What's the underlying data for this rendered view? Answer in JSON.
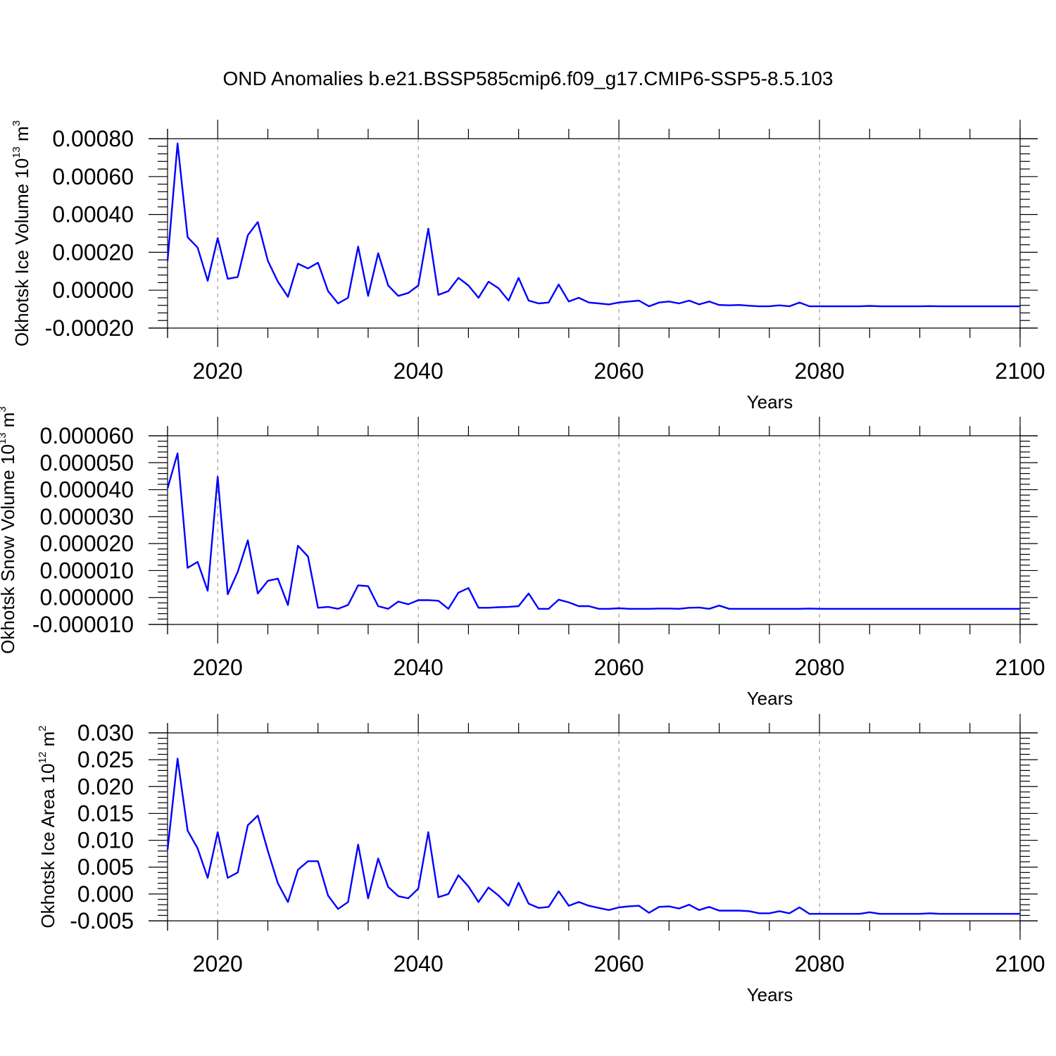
{
  "figure_title": "OND Anomalies b.e21.BSSP585cmip6.f09_g17.CMIP6-SSP5-8.5.103",
  "colors": {
    "line": "#0000ff",
    "axes": "#000000",
    "grid": "#9a9a9a",
    "background": "#ffffff"
  },
  "chart_data": [
    {
      "type": "line",
      "title": "OND Anomalies b.e21.BSSP585cmip6.f09_g17.CMIP6-SSP5-8.5.103",
      "xlabel": "Years",
      "ylabel": {
        "text": "Okhotsk Ice Volume 10",
        "exponent": "13",
        "unit": " m",
        "unit_exponent": "3"
      },
      "xlim": [
        2015,
        2100
      ],
      "ylim": [
        -0.0002,
        0.0008
      ],
      "xticks": [
        "2020",
        "2040",
        "2060",
        "2080",
        "2100"
      ],
      "yticks": [
        "0.00080",
        "0.00060",
        "0.00040",
        "0.00020",
        "0.00000",
        "-0.00020"
      ],
      "grid": "vertical dashed at major x ticks",
      "x": [
        2015,
        2016,
        2017,
        2018,
        2019,
        2020,
        2021,
        2022,
        2023,
        2024,
        2025,
        2026,
        2027,
        2028,
        2029,
        2030,
        2031,
        2032,
        2033,
        2034,
        2035,
        2036,
        2037,
        2038,
        2039,
        2040,
        2041,
        2042,
        2043,
        2044,
        2045,
        2046,
        2047,
        2048,
        2049,
        2050,
        2051,
        2052,
        2053,
        2054,
        2055,
        2056,
        2057,
        2058,
        2059,
        2060,
        2061,
        2062,
        2063,
        2064,
        2065,
        2066,
        2067,
        2068,
        2069,
        2070,
        2071,
        2072,
        2073,
        2074,
        2075,
        2076,
        2077,
        2078,
        2079,
        2080,
        2081,
        2082,
        2083,
        2084,
        2085,
        2086,
        2087,
        2088,
        2089,
        2090,
        2091,
        2092,
        2093,
        2094,
        2095,
        2096,
        2097,
        2098,
        2099,
        2100
      ],
      "values": [
        0.000155,
        0.000775,
        0.00028,
        0.000225,
        5e-05,
        0.000275,
        6e-05,
        7e-05,
        0.00029,
        0.00036,
        0.000155,
        4.5e-05,
        -3.5e-05,
        0.00014,
        0.000115,
        0.000145,
        -5e-06,
        -7e-05,
        -4e-05,
        0.00023,
        -3e-05,
        0.000195,
        2.5e-05,
        -3e-05,
        -1.5e-05,
        2.5e-05,
        0.000325,
        -2.5e-05,
        -5e-06,
        6.5e-05,
        2.5e-05,
        -4e-05,
        4.5e-05,
        1e-05,
        -5.5e-05,
        6.5e-05,
        -5.5e-05,
        -7e-05,
        -6.5e-05,
        3e-05,
        -6e-05,
        -4e-05,
        -6.5e-05,
        -7e-05,
        -7.5e-05,
        -6.5e-05,
        -6e-05,
        -5.5e-05,
        -8.5e-05,
        -6.5e-05,
        -6e-05,
        -7e-05,
        -5.5e-05,
        -7.5e-05,
        -6e-05,
        -7.8e-05,
        -8e-05,
        -7.8e-05,
        -8.2e-05,
        -8.5e-05,
        -8.5e-05,
        -8e-05,
        -8.5e-05,
        -6.5e-05,
        -8.5e-05,
        -8.5e-05,
        -8.5e-05,
        -8.5e-05,
        -8.5e-05,
        -8.5e-05,
        -8.3e-05,
        -8.5e-05,
        -8.5e-05,
        -8.5e-05,
        -8.5e-05,
        -8.5e-05,
        -8.4e-05,
        -8.5e-05,
        -8.5e-05,
        -8.5e-05,
        -8.5e-05,
        -8.5e-05,
        -8.5e-05,
        -8.5e-05,
        -8.5e-05,
        -8.5e-05
      ]
    },
    {
      "type": "line",
      "xlabel": "Years",
      "ylabel": {
        "text": "Okhotsk Snow Volume 10",
        "exponent": "13",
        "unit": " m",
        "unit_exponent": "3"
      },
      "xlim": [
        2015,
        2100
      ],
      "ylim": [
        -1e-05,
        6e-05
      ],
      "xticks": [
        "2020",
        "2040",
        "2060",
        "2080",
        "2100"
      ],
      "yticks": [
        "0.000060",
        "0.000050",
        "0.000040",
        "0.000030",
        "0.000020",
        "0.000010",
        "0.000000",
        "-0.000010"
      ],
      "grid": "vertical dashed at major x ticks",
      "x": [
        2015,
        2016,
        2017,
        2018,
        2019,
        2020,
        2021,
        2022,
        2023,
        2024,
        2025,
        2026,
        2027,
        2028,
        2029,
        2030,
        2031,
        2032,
        2033,
        2034,
        2035,
        2036,
        2037,
        2038,
        2039,
        2040,
        2041,
        2042,
        2043,
        2044,
        2045,
        2046,
        2047,
        2048,
        2049,
        2050,
        2051,
        2052,
        2053,
        2054,
        2055,
        2056,
        2057,
        2058,
        2059,
        2060,
        2061,
        2062,
        2063,
        2064,
        2065,
        2066,
        2067,
        2068,
        2069,
        2070,
        2071,
        2072,
        2073,
        2074,
        2075,
        2076,
        2077,
        2078,
        2079,
        2080,
        2081,
        2082,
        2083,
        2084,
        2085,
        2086,
        2087,
        2088,
        2089,
        2090,
        2091,
        2092,
        2093,
        2094,
        2095,
        2096,
        2097,
        2098,
        2099,
        2100
      ],
      "values": [
        4.05e-05,
        5.35e-05,
        1.1e-05,
        1.32e-05,
        2.5e-06,
        4.48e-05,
        1.2e-06,
        9.5e-06,
        2.12e-05,
        1.5e-06,
        6.2e-06,
        7e-06,
        -2.8e-06,
        1.92e-05,
        1.52e-05,
        -3.8e-06,
        -3.5e-06,
        -4.2e-06,
        -2.8e-06,
        4.5e-06,
        4.2e-06,
        -3.2e-06,
        -4.2e-06,
        -1.5e-06,
        -2.5e-06,
        -1e-06,
        -1e-06,
        -1.2e-06,
        -4.2e-06,
        1.8e-06,
        3.5e-06,
        -3.8e-06,
        -3.8e-06,
        -3.6e-06,
        -3.5e-06,
        -3.2e-06,
        1.5e-06,
        -4.2e-06,
        -4.2e-06,
        -8e-07,
        -1.8e-06,
        -3.2e-06,
        -3.2e-06,
        -4.2e-06,
        -4.2e-06,
        -4e-06,
        -4.2e-06,
        -4.2e-06,
        -4.2e-06,
        -4.1e-06,
        -4.1e-06,
        -4.2e-06,
        -3.8e-06,
        -3.7e-06,
        -4.2e-06,
        -3e-06,
        -4.2e-06,
        -4.2e-06,
        -4.2e-06,
        -4.2e-06,
        -4.2e-06,
        -4.2e-06,
        -4.2e-06,
        -4.2e-06,
        -4.1e-06,
        -4.2e-06,
        -4.2e-06,
        -4.2e-06,
        -4.2e-06,
        -4.2e-06,
        -4.2e-06,
        -4.2e-06,
        -4.2e-06,
        -4.2e-06,
        -4.2e-06,
        -4.2e-06,
        -4.2e-06,
        -4.2e-06,
        -4.2e-06,
        -4.2e-06,
        -4.2e-06,
        -4.2e-06,
        -4.2e-06,
        -4.2e-06,
        -4.2e-06,
        -4.2e-06
      ]
    },
    {
      "type": "line",
      "xlabel": "Years",
      "ylabel": {
        "text": "Okhotsk Ice Area 10",
        "exponent": "12",
        "unit": " m",
        "unit_exponent": "2"
      },
      "xlim": [
        2015,
        2100
      ],
      "ylim": [
        -0.005,
        0.03
      ],
      "xticks": [
        "2020",
        "2040",
        "2060",
        "2080",
        "2100"
      ],
      "yticks": [
        "0.030",
        "0.025",
        "0.020",
        "0.015",
        "0.010",
        "0.005",
        "0.000",
        "-0.005"
      ],
      "grid": "vertical dashed at major x ticks",
      "x": [
        2015,
        2016,
        2017,
        2018,
        2019,
        2020,
        2021,
        2022,
        2023,
        2024,
        2025,
        2026,
        2027,
        2028,
        2029,
        2030,
        2031,
        2032,
        2033,
        2034,
        2035,
        2036,
        2037,
        2038,
        2039,
        2040,
        2041,
        2042,
        2043,
        2044,
        2045,
        2046,
        2047,
        2048,
        2049,
        2050,
        2051,
        2052,
        2053,
        2054,
        2055,
        2056,
        2057,
        2058,
        2059,
        2060,
        2061,
        2062,
        2063,
        2064,
        2065,
        2066,
        2067,
        2068,
        2069,
        2070,
        2071,
        2072,
        2073,
        2074,
        2075,
        2076,
        2077,
        2078,
        2079,
        2080,
        2081,
        2082,
        2083,
        2084,
        2085,
        2086,
        2087,
        2088,
        2089,
        2090,
        2091,
        2092,
        2093,
        2094,
        2095,
        2096,
        2097,
        2098,
        2099,
        2100
      ],
      "values": [
        0.0082,
        0.0252,
        0.0118,
        0.0085,
        0.003,
        0.0115,
        0.003,
        0.004,
        0.0128,
        0.0146,
        0.008,
        0.002,
        -0.0015,
        0.0045,
        0.0061,
        0.0061,
        -0.0003,
        -0.0028,
        -0.0015,
        0.0092,
        -0.0008,
        0.0066,
        0.0013,
        -0.0004,
        -0.0008,
        0.001,
        0.0115,
        -0.0006,
        0.0,
        0.0035,
        0.0014,
        -0.0015,
        0.0012,
        -0.0003,
        -0.0022,
        0.0021,
        -0.0018,
        -0.0026,
        -0.0024,
        0.0005,
        -0.0022,
        -0.0015,
        -0.0022,
        -0.0026,
        -0.003,
        -0.0025,
        -0.0023,
        -0.0022,
        -0.0035,
        -0.0024,
        -0.0023,
        -0.0027,
        -0.002,
        -0.003,
        -0.0024,
        -0.0031,
        -0.0031,
        -0.0031,
        -0.0032,
        -0.0036,
        -0.0036,
        -0.0032,
        -0.0036,
        -0.0025,
        -0.0037,
        -0.0037,
        -0.0037,
        -0.0037,
        -0.0037,
        -0.0037,
        -0.0034,
        -0.0037,
        -0.0037,
        -0.0037,
        -0.0037,
        -0.0037,
        -0.0036,
        -0.0037,
        -0.0037,
        -0.0037,
        -0.0037,
        -0.0037,
        -0.0037,
        -0.0037,
        -0.0037,
        -0.0037
      ]
    }
  ]
}
